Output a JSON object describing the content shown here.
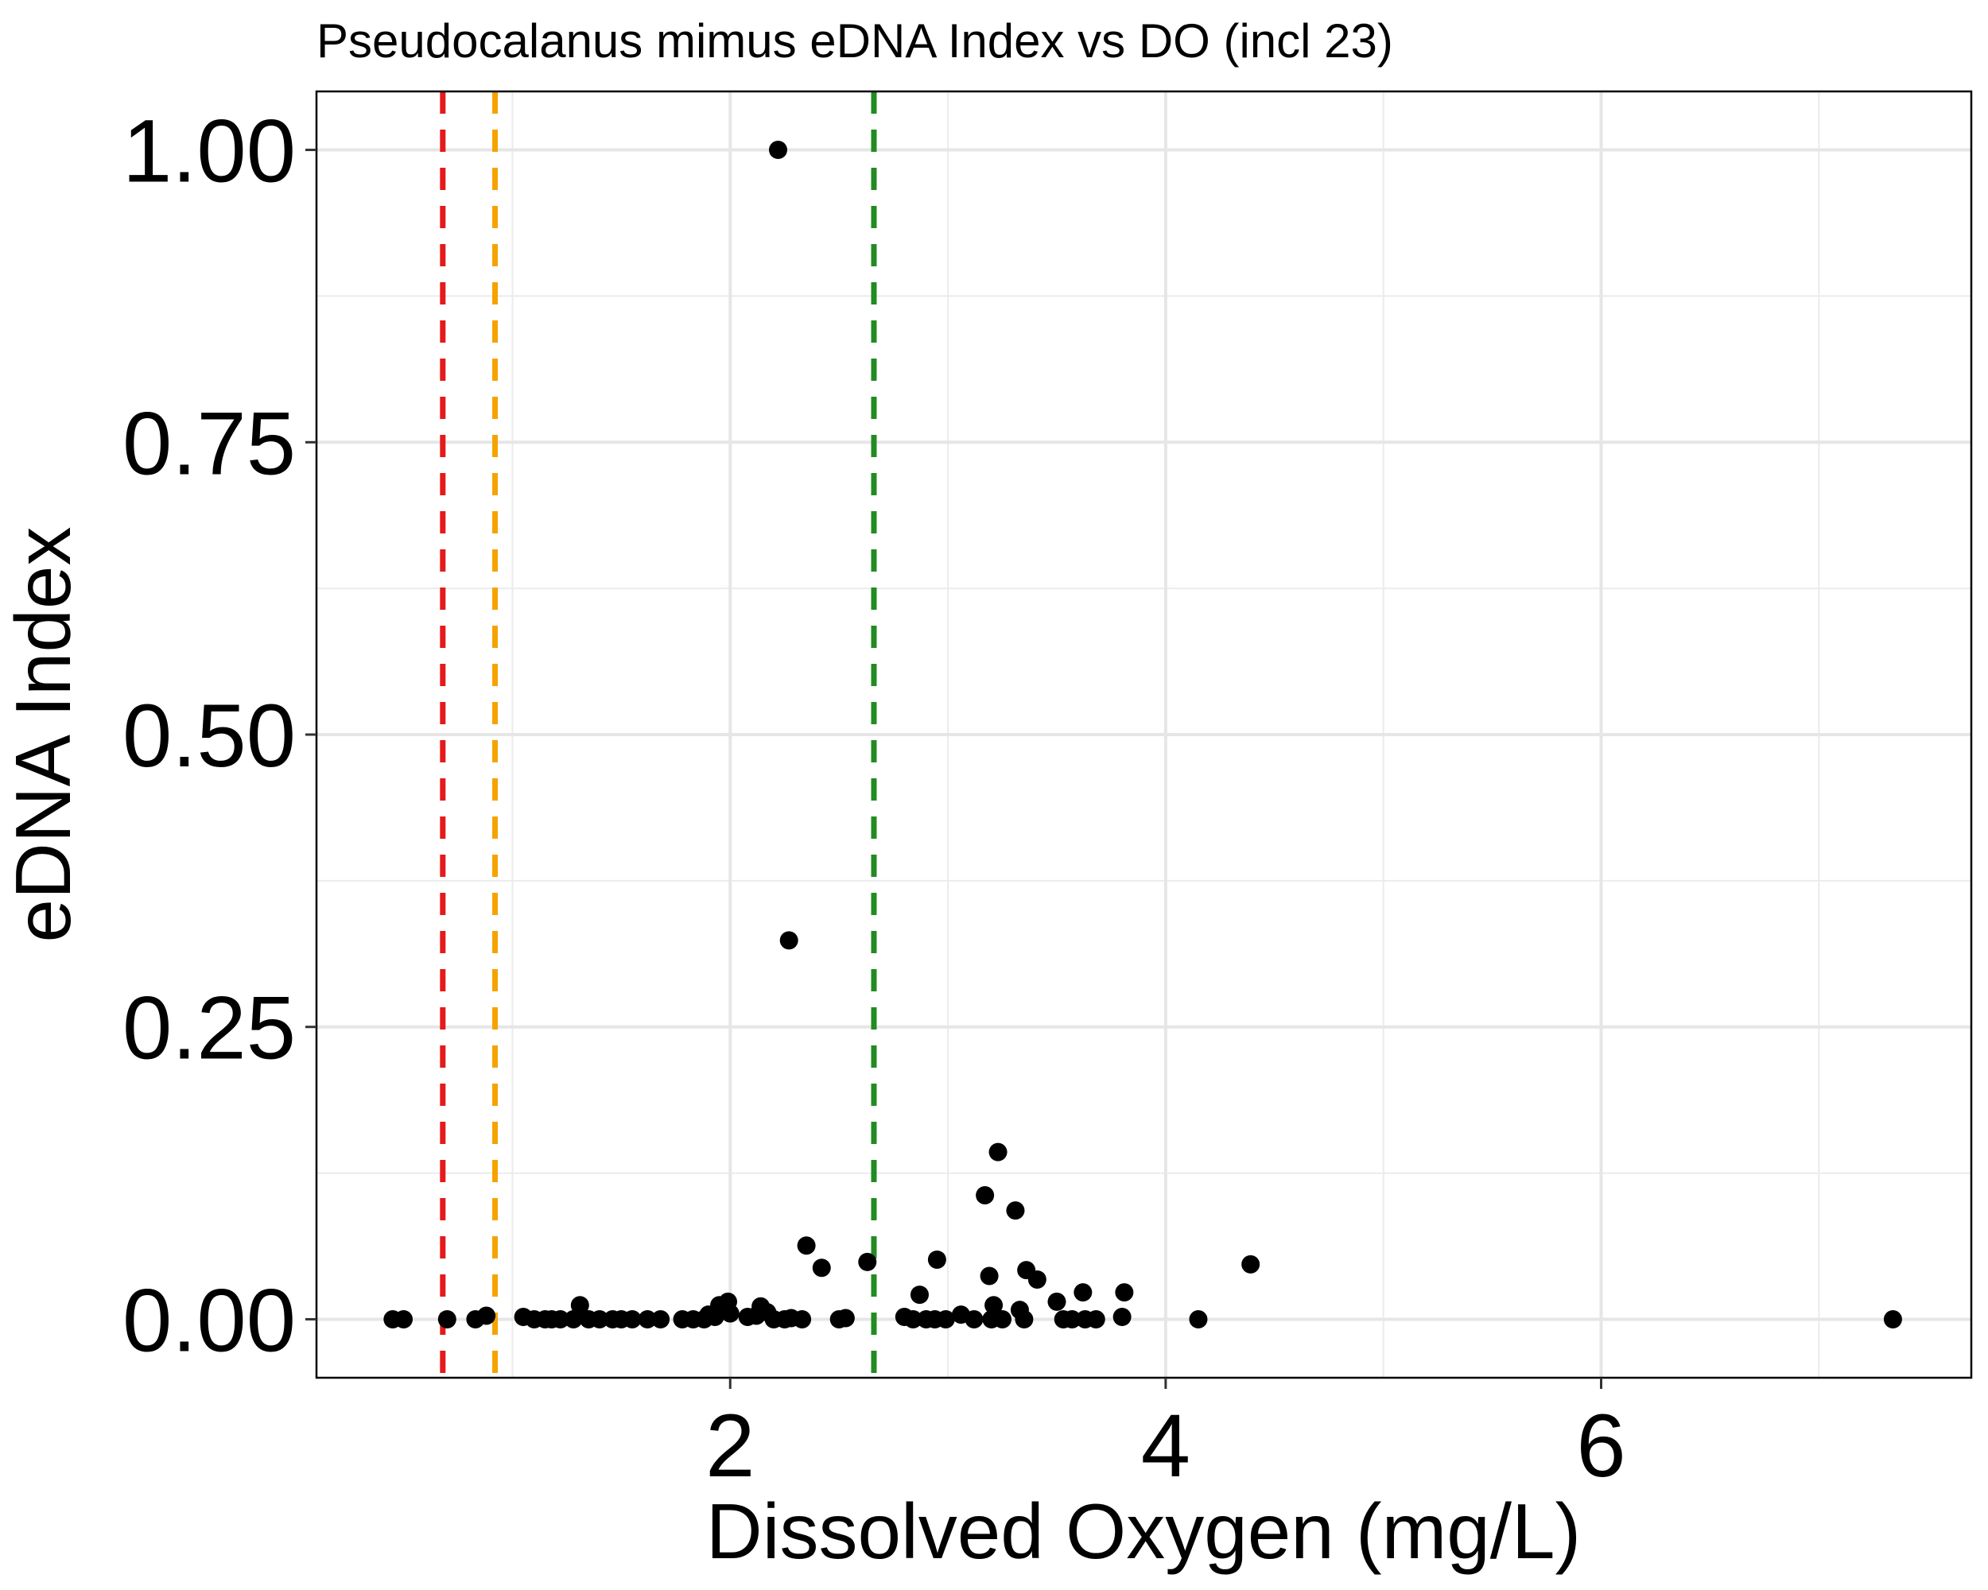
{
  "chart_data": {
    "type": "scatter",
    "title": "Pseudocalanus mimus eDNA Index vs DO (incl 23)",
    "xlabel": "Dissolved Oxygen (mg/L)",
    "ylabel": "eDNA Index",
    "xlim": [
      0.1,
      7.7
    ],
    "ylim": [
      -0.05,
      1.05
    ],
    "x_ticks": [
      2,
      4,
      6
    ],
    "x_tick_labels": [
      "2",
      "4",
      "6"
    ],
    "x_minor_gridlines": [
      1,
      3,
      5,
      7
    ],
    "y_ticks": [
      0,
      0.25,
      0.5,
      0.75,
      1.0
    ],
    "y_tick_labels": [
      "0.00",
      "0.25",
      "0.50",
      "0.75",
      "1.00"
    ],
    "y_minor_gridlines": [
      0.125,
      0.375,
      0.625,
      0.875
    ],
    "grid": true,
    "reference_lines": [
      {
        "x": 0.68,
        "color": "#e41a1c",
        "style": "dashed"
      },
      {
        "x": 0.92,
        "color": "#f5a300",
        "style": "dashed"
      },
      {
        "x": 2.66,
        "color": "#228b22",
        "style": "dashed"
      }
    ],
    "point_color": "#000000",
    "points": [
      {
        "x": 0.45,
        "y": 0
      },
      {
        "x": 0.5,
        "y": 0
      },
      {
        "x": 0.7,
        "y": 0
      },
      {
        "x": 0.83,
        "y": 0
      },
      {
        "x": 0.88,
        "y": 0.003
      },
      {
        "x": 1.05,
        "y": 0.002
      },
      {
        "x": 1.1,
        "y": 0
      },
      {
        "x": 1.15,
        "y": 0
      },
      {
        "x": 1.18,
        "y": 0
      },
      {
        "x": 1.22,
        "y": 0
      },
      {
        "x": 1.28,
        "y": 0
      },
      {
        "x": 1.31,
        "y": 0.012
      },
      {
        "x": 1.35,
        "y": 0
      },
      {
        "x": 1.4,
        "y": 0
      },
      {
        "x": 1.46,
        "y": 0
      },
      {
        "x": 1.5,
        "y": 0
      },
      {
        "x": 1.55,
        "y": 0
      },
      {
        "x": 1.62,
        "y": 0
      },
      {
        "x": 1.68,
        "y": 0
      },
      {
        "x": 1.78,
        "y": 0
      },
      {
        "x": 1.83,
        "y": 0
      },
      {
        "x": 1.88,
        "y": 0
      },
      {
        "x": 1.9,
        "y": 0.004
      },
      {
        "x": 1.93,
        "y": 0.002
      },
      {
        "x": 1.95,
        "y": 0.012
      },
      {
        "x": 1.99,
        "y": 0.015
      },
      {
        "x": 2.0,
        "y": 0.005
      },
      {
        "x": 2.08,
        "y": 0.002
      },
      {
        "x": 2.12,
        "y": 0.003
      },
      {
        "x": 2.14,
        "y": 0.011
      },
      {
        "x": 2.17,
        "y": 0.006
      },
      {
        "x": 2.2,
        "y": 0
      },
      {
        "x": 2.22,
        "y": 1.0
      },
      {
        "x": 2.25,
        "y": 0
      },
      {
        "x": 2.27,
        "y": 0.324
      },
      {
        "x": 2.28,
        "y": 0.001
      },
      {
        "x": 2.33,
        "y": 0
      },
      {
        "x": 2.35,
        "y": 0.063
      },
      {
        "x": 2.42,
        "y": 0.044
      },
      {
        "x": 2.5,
        "y": 0
      },
      {
        "x": 2.53,
        "y": 0.001
      },
      {
        "x": 2.63,
        "y": 0.049
      },
      {
        "x": 2.8,
        "y": 0.002
      },
      {
        "x": 2.84,
        "y": 0
      },
      {
        "x": 2.87,
        "y": 0.021
      },
      {
        "x": 2.9,
        "y": 0
      },
      {
        "x": 2.94,
        "y": 0
      },
      {
        "x": 2.95,
        "y": 0.051
      },
      {
        "x": 2.99,
        "y": 0
      },
      {
        "x": 3.06,
        "y": 0.004
      },
      {
        "x": 3.12,
        "y": 0
      },
      {
        "x": 3.17,
        "y": 0.106
      },
      {
        "x": 3.19,
        "y": 0.037
      },
      {
        "x": 3.2,
        "y": 0
      },
      {
        "x": 3.21,
        "y": 0.012
      },
      {
        "x": 3.23,
        "y": 0.143
      },
      {
        "x": 3.25,
        "y": 0
      },
      {
        "x": 3.31,
        "y": 0.093
      },
      {
        "x": 3.33,
        "y": 0.008
      },
      {
        "x": 3.35,
        "y": 0
      },
      {
        "x": 3.36,
        "y": 0.042
      },
      {
        "x": 3.41,
        "y": 0.034
      },
      {
        "x": 3.5,
        "y": 0.015
      },
      {
        "x": 3.53,
        "y": 0
      },
      {
        "x": 3.57,
        "y": 0
      },
      {
        "x": 3.62,
        "y": 0.023
      },
      {
        "x": 3.63,
        "y": 0
      },
      {
        "x": 3.68,
        "y": 0
      },
      {
        "x": 3.8,
        "y": 0.002
      },
      {
        "x": 3.81,
        "y": 0.023
      },
      {
        "x": 4.15,
        "y": 0
      },
      {
        "x": 4.39,
        "y": 0.047
      },
      {
        "x": 7.34,
        "y": 0
      }
    ]
  }
}
